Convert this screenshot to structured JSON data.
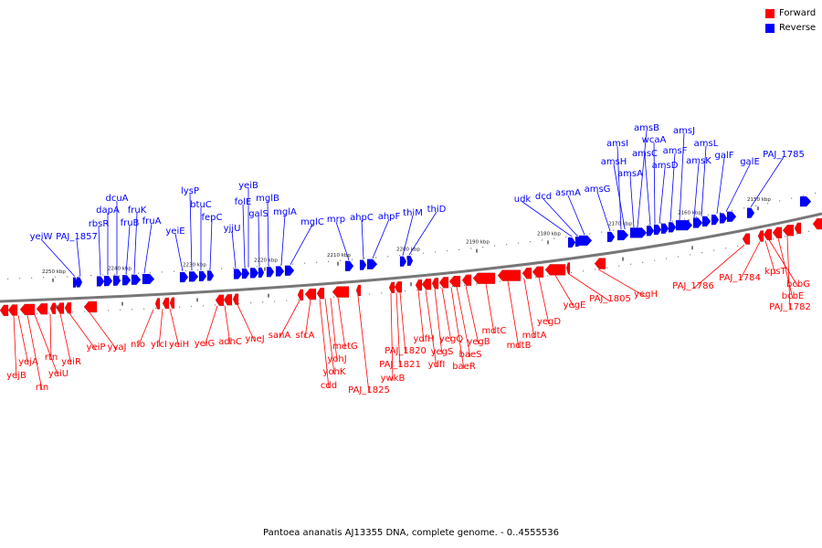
{
  "legend": [
    {
      "label": "Forward",
      "color": "#ff0000"
    },
    {
      "label": "Reverse",
      "color": "#0000ff"
    }
  ],
  "caption": "Pantoea ananatis AJ13355 DNA, complete genome. - 0..4555536",
  "ticks": [
    {
      "label": "2250 kbp"
    },
    {
      "label": "2240 kbp"
    },
    {
      "label": "2230 kbp"
    },
    {
      "label": "2220 kbp"
    },
    {
      "label": "2210 kbp"
    },
    {
      "label": "2200 kbp"
    },
    {
      "label": "2190 kbp"
    },
    {
      "label": "2180 kbp"
    },
    {
      "label": "2170 kbp"
    },
    {
      "label": "2160 kbp"
    },
    {
      "label": "2150 kbp"
    }
  ],
  "reverse_genes": [
    "yeiW",
    "PAJ_1857",
    "rbsR",
    "dapA",
    "dcuA",
    "fruB",
    "fruK",
    "fruA",
    "yeiE",
    "lysP",
    "btuC",
    "fepC",
    "yjjU",
    "folE",
    "yeiB",
    "galS",
    "mglB",
    "mglA",
    "mglC",
    "mrp",
    "ahpC",
    "ahpF",
    "thiM",
    "thiD",
    "udk",
    "dcd",
    "asmA",
    "amsG",
    "amsI",
    "amsH",
    "amsA",
    "amsB",
    "amsC",
    "wcaA",
    "amsD",
    "amsF",
    "amsJ",
    "amsK",
    "amsL",
    "galF",
    "galE",
    "PAJ_1785"
  ],
  "forward_genes": [
    "yejB",
    "yejA",
    "rtn",
    "yeiU",
    "rtn",
    "yeiR",
    "yeiP",
    "yyaJ",
    "nfo",
    "yfcI",
    "yeiH",
    "yeiG",
    "adhC",
    "yneJ",
    "sanA",
    "sfcA",
    "cdd",
    "yohK",
    "yohJ",
    "metG",
    "PAJ_1825",
    "ywkB",
    "PAJ_1821",
    "PAJ_1820",
    "ydfH",
    "ydfI",
    "yegS",
    "yegQ",
    "baeR",
    "baeS",
    "yegB",
    "mdtC",
    "mdtB",
    "mdtA",
    "yegD",
    "yegE",
    "PAJ_1805",
    "yegH",
    "PAJ_1786",
    "PAJ_1784",
    "kpsT",
    "bcbG",
    "bcbE",
    "PAJ_1782"
  ]
}
